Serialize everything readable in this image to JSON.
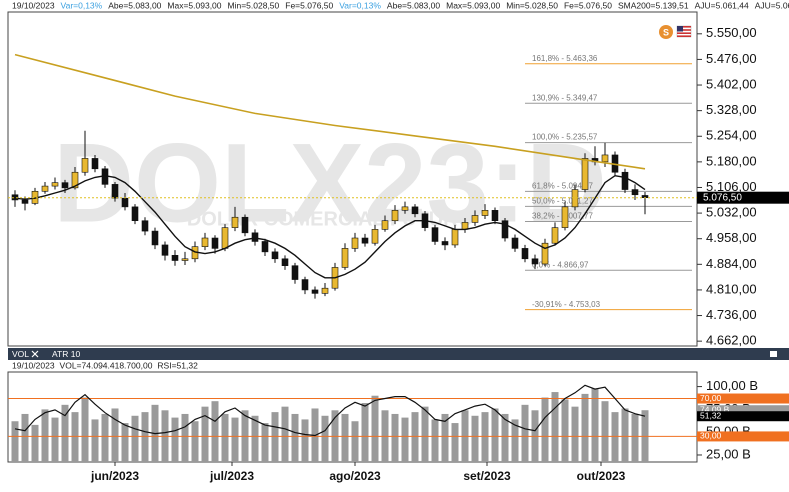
{
  "header": [
    {
      "text": "19/10/2023",
      "color": "#222"
    },
    {
      "text": "Var=0,13%",
      "color": "#3aa0e0"
    },
    {
      "text": "Abe=5.083,00",
      "color": "#222"
    },
    {
      "text": "Max=5.093,00",
      "color": "#222"
    },
    {
      "text": "Min=5.028,50",
      "color": "#222"
    },
    {
      "text": "Fe=5.076,50",
      "color": "#222"
    },
    {
      "text": "Var=0,13%",
      "color": "#3aa0e0"
    },
    {
      "text": "Abe=5.083,00",
      "color": "#222"
    },
    {
      "text": "Max=5.093,00",
      "color": "#222"
    },
    {
      "text": "Min=5.028,50",
      "color": "#222"
    },
    {
      "text": "Fe=5.076,50",
      "color": "#222"
    },
    {
      "text": "SMA200=5.139,51",
      "color": "#222"
    },
    {
      "text": "AJU=5.061,44",
      "color": "#222"
    },
    {
      "text": "AJU=5.061,44",
      "color": "#222"
    },
    {
      "text": "SMA8=5.079,",
      "color": "#222"
    }
  ],
  "icon_letter": "S",
  "chart_data": [
    {
      "type": "candlestick",
      "watermark": "DOLX23:D",
      "watermark_subtitle": "DOLAR COMERCIAL FUTURO",
      "up_color": "#e8b830",
      "down_color": "#111111",
      "xlim": [
        -0.7,
        68.2
      ],
      "ylim": [
        4648,
        5613
      ],
      "yticks": [
        {
          "value": 5550,
          "label": "5.550,00"
        },
        {
          "value": 5476,
          "label": "5.476,00"
        },
        {
          "value": 5402,
          "label": "5.402,00"
        },
        {
          "value": 5328,
          "label": "5.328,00"
        },
        {
          "value": 5254,
          "label": "5.254,00"
        },
        {
          "value": 5180,
          "label": "5.180,00"
        },
        {
          "value": 5106,
          "label": "5.106,00"
        },
        {
          "value": 5032,
          "label": "5.032,00"
        },
        {
          "value": 4958,
          "label": "4.958,00"
        },
        {
          "value": 4884,
          "label": "4.884,00"
        },
        {
          "value": 4810,
          "label": "4.810,00"
        },
        {
          "value": 4736,
          "label": "4.736,00"
        },
        {
          "value": 4662,
          "label": "4.662,00"
        }
      ],
      "xticks": [
        {
          "value": 10,
          "label": "jun/2023"
        },
        {
          "value": 21.7,
          "label": "jul/2023"
        },
        {
          "value": 34,
          "label": "ago/2023"
        },
        {
          "value": 47.2,
          "label": "set/2023"
        },
        {
          "value": 58.6,
          "label": "out/2023"
        }
      ],
      "ohlc": [
        [
          5085,
          5098,
          5050,
          5070
        ],
        [
          5070,
          5080,
          5040,
          5060
        ],
        [
          5060,
          5105,
          5055,
          5095
        ],
        [
          5095,
          5122,
          5088,
          5110
        ],
        [
          5110,
          5135,
          5100,
          5120
        ],
        [
          5120,
          5128,
          5090,
          5105
        ],
        [
          5105,
          5165,
          5100,
          5150
        ],
        [
          5150,
          5270,
          5140,
          5190
        ],
        [
          5190,
          5200,
          5150,
          5160
        ],
        [
          5160,
          5168,
          5105,
          5115
        ],
        [
          5115,
          5122,
          5065,
          5075
        ],
        [
          5075,
          5090,
          5040,
          5050
        ],
        [
          5050,
          5058,
          5000,
          5010
        ],
        [
          5010,
          5020,
          4968,
          4980
        ],
        [
          4980,
          4990,
          4928,
          4940
        ],
        [
          4940,
          4950,
          4895,
          4910
        ],
        [
          4910,
          4925,
          4880,
          4895
        ],
        [
          4895,
          4920,
          4882,
          4900
        ],
        [
          4900,
          4950,
          4890,
          4935
        ],
        [
          4935,
          4975,
          4925,
          4960
        ],
        [
          4960,
          4968,
          4915,
          4930
        ],
        [
          4930,
          5000,
          4922,
          4990
        ],
        [
          4990,
          5050,
          4980,
          5020
        ],
        [
          5020,
          5028,
          4965,
          4975
        ],
        [
          4975,
          4985,
          4938,
          4950
        ],
        [
          4950,
          4958,
          4908,
          4920
        ],
        [
          4920,
          4930,
          4888,
          4900
        ],
        [
          4900,
          4910,
          4868,
          4880
        ],
        [
          4880,
          4888,
          4828,
          4840
        ],
        [
          4840,
          4848,
          4798,
          4810
        ],
        [
          4810,
          4820,
          4785,
          4800
        ],
        [
          4800,
          4830,
          4792,
          4815
        ],
        [
          4815,
          4888,
          4808,
          4875
        ],
        [
          4875,
          4945,
          4868,
          4930
        ],
        [
          4930,
          4975,
          4920,
          4960
        ],
        [
          4960,
          4972,
          4935,
          4945
        ],
        [
          4945,
          4998,
          4938,
          4985
        ],
        [
          4985,
          5025,
          4978,
          5010
        ],
        [
          5010,
          5055,
          5000,
          5040
        ],
        [
          5040,
          5065,
          5030,
          5050
        ],
        [
          5050,
          5058,
          5020,
          5030
        ],
        [
          5030,
          5038,
          4980,
          4990
        ],
        [
          4990,
          4998,
          4940,
          4950
        ],
        [
          4950,
          4962,
          4925,
          4940
        ],
        [
          4940,
          4998,
          4932,
          4985
        ],
        [
          4985,
          5018,
          4975,
          5005
        ],
        [
          5005,
          5040,
          4995,
          5025
        ],
        [
          5025,
          5058,
          5015,
          5040
        ],
        [
          5040,
          5048,
          5000,
          5010
        ],
        [
          5010,
          5018,
          4950,
          4960
        ],
        [
          4960,
          4970,
          4920,
          4930
        ],
        [
          4930,
          4940,
          4890,
          4900
        ],
        [
          4900,
          4912,
          4870,
          4885
        ],
        [
          4885,
          4958,
          4878,
          4945
        ],
        [
          4945,
          5005,
          4938,
          4990
        ],
        [
          4990,
          5065,
          4982,
          5050
        ],
        [
          5050,
          5115,
          5040,
          5100
        ],
        [
          5100,
          5205,
          5092,
          5190
        ],
        [
          5190,
          5225,
          5170,
          5180
        ],
        [
          5180,
          5235,
          5165,
          5200
        ],
        [
          5200,
          5210,
          5140,
          5150
        ],
        [
          5150,
          5160,
          5090,
          5100
        ],
        [
          5100,
          5115,
          5070,
          5085
        ],
        [
          5083,
          5093,
          5028.5,
          5076.5
        ]
      ],
      "lines": [
        {
          "color": "#c8a020",
          "x": [
            0,
            8,
            16,
            24,
            32,
            40,
            48,
            56,
            63
          ],
          "values": [
            5490,
            5430,
            5370,
            5320,
            5285,
            5255,
            5225,
            5190,
            5160
          ]
        },
        {
          "color": "#111111",
          "x": [
            0,
            1,
            2,
            3,
            4,
            5,
            6,
            7,
            8,
            9,
            10,
            11,
            12,
            13,
            14,
            15,
            16,
            17,
            18,
            19,
            20,
            21,
            22,
            23,
            24,
            25,
            26,
            27,
            28,
            29,
            30,
            31,
            32,
            33,
            34,
            35,
            36,
            37,
            38,
            39,
            40,
            41,
            42,
            43,
            44,
            45,
            46,
            47,
            48,
            49,
            50,
            51,
            52,
            53,
            54,
            55,
            56,
            57,
            58,
            59,
            60,
            61,
            62,
            63
          ],
          "values": [
            5075,
            5072,
            5075,
            5082,
            5090,
            5098,
            5110,
            5125,
            5135,
            5140,
            5135,
            5120,
            5095,
            5065,
            5035,
            5000,
            4965,
            4935,
            4920,
            4915,
            4920,
            4930,
            4945,
            4955,
            4960,
            4955,
            4945,
            4930,
            4910,
            4885,
            4860,
            4845,
            4845,
            4855,
            4870,
            4890,
            4920,
            4950,
            4975,
            4995,
            5010,
            5010,
            5005,
            4995,
            4985,
            4985,
            4990,
            5000,
            5005,
            5000,
            4985,
            4965,
            4945,
            4930,
            4940,
            4960,
            4990,
            5030,
            5075,
            5120,
            5140,
            5135,
            5120,
            5100
          ]
        }
      ],
      "levels": [
        {
          "label": "161,8% - 5.463,36",
          "value": 5463.36,
          "color": "#f0a030"
        },
        {
          "label": "130,9% - 5.349,47",
          "value": 5349.47,
          "color": "#999999"
        },
        {
          "label": "100,0% - 5.235,57",
          "value": 5235.57,
          "color": "#999999"
        },
        {
          "label": "61,8% - 5.094,77",
          "value": 5094.77,
          "color": "#999999"
        },
        {
          "label": "50,0% - 5.051,27",
          "value": 5051.27,
          "color": "#999999"
        },
        {
          "label": "38,2% - 5.007,77",
          "value": 5007.77,
          "color": "#999999"
        },
        {
          "label": "0,0% - 4.866,97",
          "value": 4866.97,
          "color": "#999999"
        },
        {
          "label": "-30,91% - 4.753,03",
          "value": 4753.03,
          "color": "#f0a030"
        }
      ],
      "last_price": 5076.5,
      "last_price_label": "5.076,50"
    },
    {
      "type": "volume",
      "tabs": [
        "VOL",
        "ATR 10"
      ],
      "info": [
        "19/10/2023",
        "VOL=74.094.418.700,00",
        "RSI=51,32"
      ],
      "ylim": [
        17.3,
        116
      ],
      "y2lim": [
        3,
        98
      ],
      "yticks": [
        {
          "value": 100,
          "label": "100,00 B"
        },
        {
          "value": 75,
          "label": "75,00 B"
        },
        {
          "value": 50,
          "label": "50,00 B"
        },
        {
          "value": 25,
          "label": "25,00 B"
        }
      ],
      "y2ticks": [
        {
          "value": 70,
          "label": "70,00"
        },
        {
          "value": 30,
          "label": "30,00"
        }
      ],
      "level_color": "#f07020",
      "series": [
        {
          "name": "VOL",
          "color": "#9a9a9a",
          "values": [
            62,
            70,
            58,
            75,
            66,
            80,
            72,
            88,
            64,
            70,
            76,
            60,
            68,
            72,
            80,
            74,
            66,
            70,
            62,
            78,
            84,
            70,
            66,
            74,
            68,
            60,
            72,
            78,
            70,
            64,
            76,
            68,
            74,
            70,
            62,
            82,
            90,
            74,
            70,
            66,
            72,
            78,
            64,
            70,
            60,
            74,
            68,
            72,
            76,
            70,
            64,
            80,
            74,
            88,
            94,
            86,
            78,
            92,
            98,
            84,
            72,
            76,
            70,
            74.09
          ],
          "last_label": "74,09 B"
        },
        {
          "name": "RSI",
          "color": "#111111",
          "axis": "y2",
          "values": [
            38,
            36,
            48,
            55,
            58,
            52,
            66,
            74,
            64,
            55,
            48,
            42,
            38,
            35,
            33,
            34,
            36,
            40,
            48,
            52,
            46,
            56,
            60,
            52,
            47,
            42,
            40,
            38,
            34,
            32,
            31,
            36,
            50,
            60,
            66,
            62,
            68,
            70,
            72,
            72,
            66,
            58,
            48,
            46,
            54,
            58,
            62,
            64,
            58,
            48,
            42,
            38,
            36,
            50,
            60,
            70,
            76,
            84,
            80,
            82,
            70,
            58,
            54,
            51.32
          ],
          "last_label": "51,32"
        }
      ]
    }
  ]
}
